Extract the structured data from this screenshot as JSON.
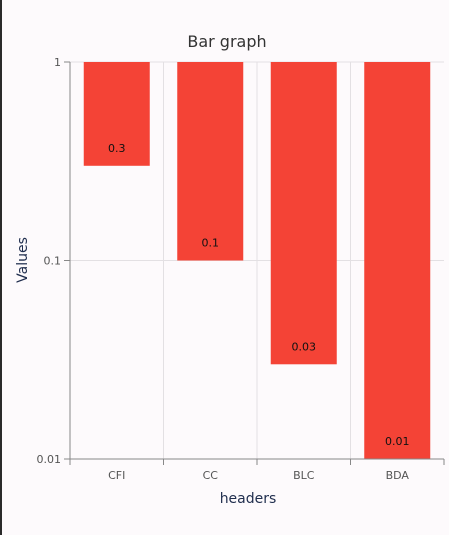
{
  "chart_data": {
    "type": "bar",
    "title": "Bar graph",
    "xlabel": "headers",
    "ylabel": "Values",
    "categories": [
      "CFI",
      "CC",
      "BLC",
      "BDA"
    ],
    "values": [
      0.3,
      0.1,
      0.03,
      0.01
    ],
    "value_labels": [
      "0.3",
      "0.1",
      "0.03",
      "0.01"
    ],
    "y_scale": "log",
    "ylim": [
      0.01,
      1
    ],
    "y_ticks": [
      1,
      0.1,
      0.01
    ],
    "y_tick_labels": [
      "1",
      "0.1",
      "0.01"
    ],
    "grid": true,
    "legend": "none",
    "bar_color": "#f44336"
  }
}
